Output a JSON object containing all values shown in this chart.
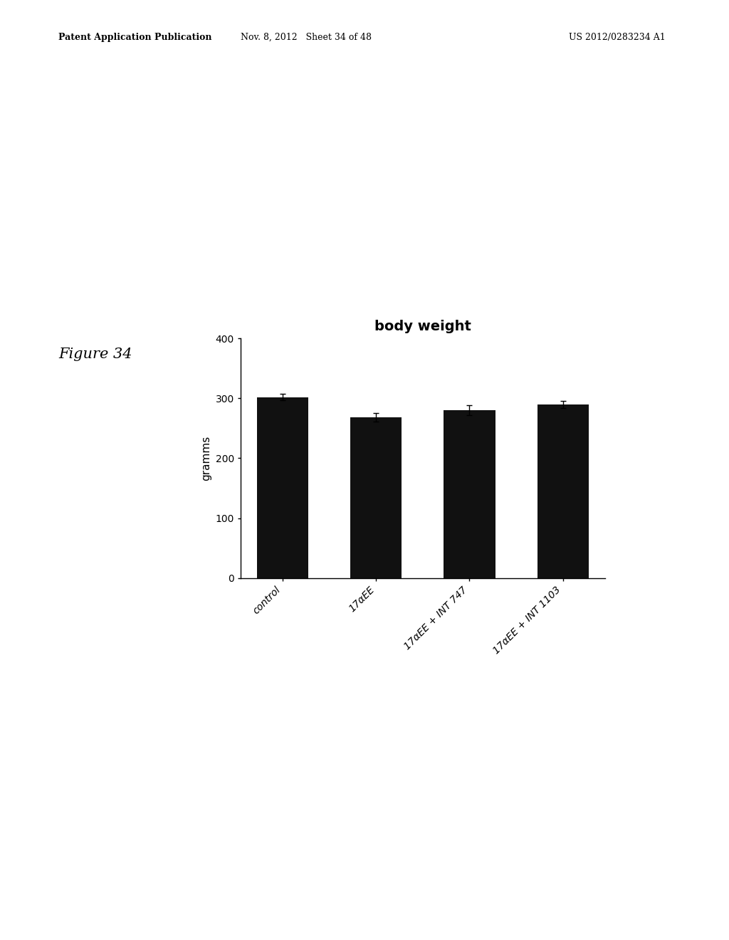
{
  "title": "body weight",
  "ylabel": "gramms",
  "ylim": [
    0,
    400
  ],
  "yticks": [
    0,
    100,
    200,
    300,
    400
  ],
  "categories": [
    "control",
    "17αEE",
    "17αEE + INT 747",
    "17αEE + INT 1103"
  ],
  "values": [
    302,
    268,
    280,
    290
  ],
  "errors": [
    5,
    7,
    8,
    6
  ],
  "bar_color": "#111111",
  "bar_width": 0.55,
  "background_color": "#ffffff",
  "title_fontsize": 14,
  "axis_fontsize": 11,
  "tick_fontsize": 10,
  "header_left": "Patent Application Publication",
  "header_mid": "Nov. 8, 2012   Sheet 34 of 48",
  "header_right": "US 2012/0283234 A1",
  "figure_label": "Figure 34"
}
